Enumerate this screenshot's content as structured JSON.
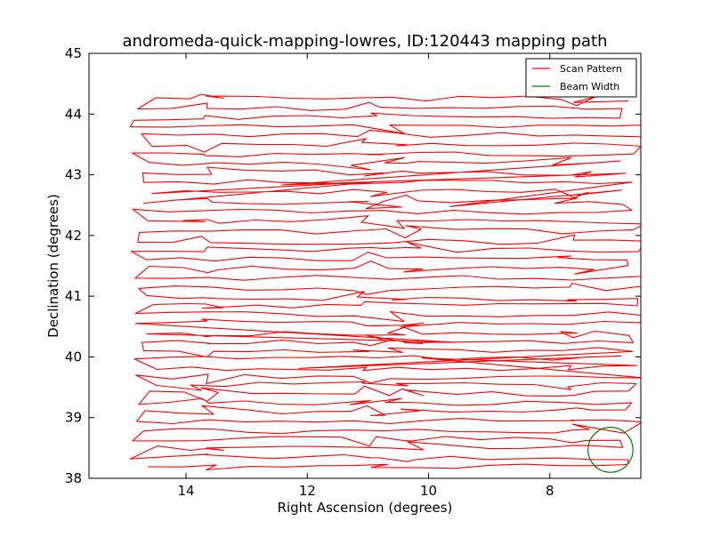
{
  "chart_data": {
    "type": "line",
    "title": "andromeda-quick-mapping-lowres, ID:120443 mapping path",
    "xlabel": "Right Ascension (degrees)",
    "ylabel": "Declination (degrees)",
    "xlim": [
      15.6,
      6.5
    ],
    "ylim": [
      38,
      45
    ],
    "x_inverted": true,
    "xticks": [
      14,
      12,
      10,
      8
    ],
    "yticks": [
      38,
      39,
      40,
      41,
      42,
      43,
      44,
      45
    ],
    "xtick_labels": [
      "14",
      "12",
      "10",
      "8"
    ],
    "ytick_labels": [
      "38",
      "39",
      "40",
      "41",
      "42",
      "43",
      "44",
      "45"
    ],
    "grid": false,
    "legend_position": "top-right",
    "series": [
      {
        "name": "Scan Pattern",
        "color": "#ff0000",
        "style": "raster-scan",
        "ra_range": [
          14.6,
          6.6
        ],
        "dec_range": [
          38.2,
          44.3
        ],
        "row_spacing": 0.15,
        "turn_ra": [
          13.7,
          11.0,
          10.4,
          7.6
        ]
      },
      {
        "name": "Beam Width",
        "color": "#008000",
        "shape": "circle",
        "center": [
          7.0,
          38.47
        ],
        "radius_dec": 0.37
      }
    ]
  }
}
